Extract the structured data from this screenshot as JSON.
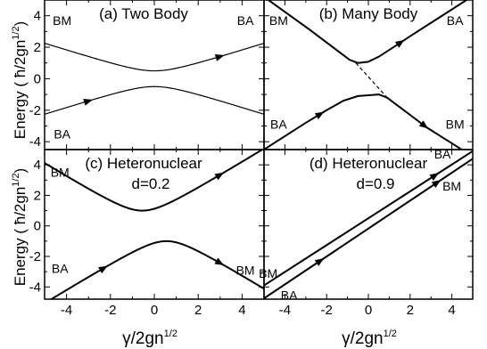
{
  "figure": {
    "ylabel_top": "Energy  ( ħ/2gn",
    "ylabel_top_exp": "1/2",
    "ylabel_top_close": ")",
    "ylabel_bottom": "Energy  ( ħ/2gn",
    "ylabel_bottom_exp": "1/2",
    "ylabel_bottom_close": ")",
    "xlabel_left": "γ/2gn",
    "xlabel_left_exp": "1/2",
    "xlabel_right": "γ/2gn",
    "xlabel_right_exp": "1/2"
  },
  "chart_data": [
    {
      "type": "line",
      "title": "(a)  Two Body",
      "xlim": [
        -5,
        5
      ],
      "ylim": [
        -4.5,
        5
      ],
      "xticks": [
        -4,
        -2,
        0,
        2,
        4
      ],
      "yticks": [
        -4,
        -2,
        0,
        2,
        4
      ],
      "labels": [
        {
          "text": "BM",
          "x": -4.2,
          "y": 3.7
        },
        {
          "text": "BA",
          "x": 4.15,
          "y": 3.7
        },
        {
          "text": "BA",
          "x": -4.2,
          "y": -3.5
        }
      ],
      "series": [
        {
          "kind": "hyperbola",
          "center": 0,
          "offset": 0,
          "slope": 0.44,
          "gap": 0.5,
          "branch": "upper",
          "arrows": [
            {
              "x": 3.0,
              "dir": 1
            }
          ]
        },
        {
          "kind": "hyperbola",
          "center": 0,
          "offset": 0,
          "slope": 0.44,
          "gap": 0.5,
          "branch": "lower",
          "arrows": [
            {
              "x": -3.0,
              "dir": 1
            }
          ]
        }
      ]
    },
    {
      "type": "line",
      "title": "(b)  Many Body",
      "xlim": [
        -5,
        5
      ],
      "ylim": [
        -4.5,
        5
      ],
      "xticks": [
        -4,
        -2,
        0,
        2,
        4
      ],
      "yticks": [
        -4,
        -2,
        0,
        2,
        4
      ],
      "labels": [
        {
          "text": "BM",
          "x": -4.3,
          "y": 3.7
        },
        {
          "text": "BA",
          "x": 4.15,
          "y": 3.7
        },
        {
          "text": "BA",
          "x": -4.3,
          "y": -2.9
        },
        {
          "text": "BM",
          "x": 4.15,
          "y": -2.9
        }
      ],
      "series": [
        {
          "kind": "piecewise",
          "points": [
            [
              -5,
              5.2
            ],
            [
              -2.8,
              3.1
            ],
            [
              -1.6,
              1.9
            ],
            [
              -0.9,
              1.2
            ],
            [
              -0.5,
              1.0
            ],
            [
              0.0,
              1.08
            ],
            [
              0.5,
              1.4
            ],
            [
              1.2,
              2.0
            ],
            [
              2.0,
              2.7
            ],
            [
              3.0,
              3.55
            ],
            [
              4.0,
              4.4
            ],
            [
              5.0,
              5.25
            ]
          ],
          "width": 2,
          "arrows": [
            {
              "x": 1.55,
              "dir": 1
            }
          ]
        },
        {
          "kind": "piecewise",
          "points": [
            [
              -5,
              -4.5
            ],
            [
              -4.0,
              -3.65
            ],
            [
              -3.0,
              -2.8
            ],
            [
              -2.0,
              -2.0
            ],
            [
              -1.2,
              -1.4
            ],
            [
              -0.5,
              -1.1
            ],
            [
              0.5,
              -1.0
            ],
            [
              0.9,
              -1.2
            ],
            [
              1.6,
              -1.9
            ],
            [
              2.8,
              -3.1
            ],
            [
              4.0,
              -4.1
            ],
            [
              5.0,
              -4.95
            ]
          ],
          "width": 2,
          "arrows": [
            {
              "x": -2.3,
              "dir": 1
            },
            {
              "x": 2.7,
              "dir": 1
            }
          ]
        },
        {
          "kind": "dashed",
          "points": [
            [
              -0.6,
              1.0
            ],
            [
              0.9,
              -1.2
            ]
          ]
        }
      ]
    },
    {
      "type": "line",
      "title": "(c)  Heteronuclear",
      "subtitle": "d=0.2",
      "xlim": [
        -5,
        5
      ],
      "ylim": [
        -4.8,
        5
      ],
      "xticks": [
        -4,
        -2,
        0,
        2,
        4
      ],
      "yticks": [
        -4,
        -2,
        0,
        2,
        4
      ],
      "labels": [
        {
          "text": "BM",
          "x": -4.3,
          "y": 3.5
        },
        {
          "text": "BA",
          "x": -4.3,
          "y": -2.8
        },
        {
          "text": "BM",
          "x": 4.15,
          "y": -2.9
        }
      ],
      "series": [
        {
          "kind": "hyperbola",
          "center": -0.55,
          "offset": 0.1,
          "slope": 0.88,
          "gap": 0.9,
          "branch": "upper",
          "width": 2,
          "arrows": [
            {
              "x": 3.0,
              "dir": 1
            }
          ]
        },
        {
          "kind": "hyperbola",
          "center": 0.55,
          "offset": -0.1,
          "slope": 0.88,
          "gap": 0.9,
          "branch": "lower",
          "width": 2,
          "arrows": [
            {
              "x": -2.3,
              "dir": 1
            },
            {
              "x": 3.0,
              "dir": 1
            }
          ]
        }
      ]
    },
    {
      "type": "line",
      "title": "(d)  Heteronuclear",
      "subtitle": "d=0.9",
      "xlim": [
        -5,
        5
      ],
      "ylim": [
        -4.8,
        5
      ],
      "xticks": [
        -4,
        -2,
        0,
        2,
        4
      ],
      "yticks": [
        -4,
        -2,
        0,
        2,
        4
      ],
      "labels": [
        {
          "text": "BA",
          "x": 3.55,
          "y": 4.7
        },
        {
          "text": "BM",
          "x": 4.0,
          "y": 2.6
        },
        {
          "text": "BM",
          "x": -4.8,
          "y": -3.1
        },
        {
          "text": "BA",
          "x": -3.8,
          "y": -4.55
        }
      ],
      "series": [
        {
          "kind": "piecewise",
          "points": [
            [
              -5,
              -3.9
            ],
            [
              5,
              4.9
            ]
          ],
          "width": 2,
          "arrows": [
            {
              "x": 3.2,
              "dir": 1
            }
          ]
        },
        {
          "kind": "piecewise",
          "points": [
            [
              -5,
              -4.75
            ],
            [
              5,
              4.4
            ]
          ],
          "width": 2,
          "arrows": [
            {
              "x": -2.3,
              "dir": 1
            },
            {
              "x": 3.3,
              "dir": 1
            }
          ]
        }
      ]
    }
  ]
}
